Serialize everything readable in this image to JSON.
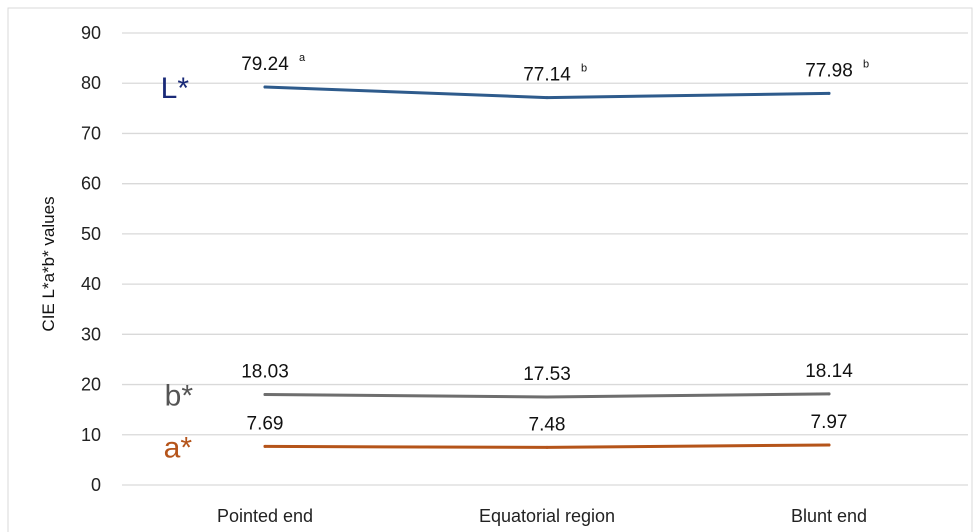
{
  "chart_data": {
    "type": "line",
    "ylabel": "CIE L*a*b* values",
    "xlabel": "",
    "ylim": [
      0,
      90
    ],
    "ytick_step": 10,
    "yticks": [
      "0",
      "10",
      "20",
      "30",
      "40",
      "50",
      "60",
      "70",
      "80",
      "90"
    ],
    "categories": [
      "Pointed end",
      "Equatorial region",
      "Blunt end"
    ],
    "grid": true,
    "series": [
      {
        "name": "L*",
        "color": "#2e5b8c",
        "label_color": "#1a2a78",
        "values": [
          79.24,
          77.14,
          77.98
        ],
        "labels": [
          "79.24",
          "77.14",
          "77.98"
        ],
        "superscripts": [
          "a",
          "b",
          "b"
        ]
      },
      {
        "name": "b*",
        "color": "#6e6e6e",
        "label_color": "#555555",
        "values": [
          18.03,
          17.53,
          18.14
        ],
        "labels": [
          "18.03",
          "17.53",
          "18.14"
        ],
        "superscripts": [
          "",
          "",
          ""
        ]
      },
      {
        "name": "a*",
        "color": "#b5541a",
        "label_color": "#b5541a",
        "values": [
          7.69,
          7.48,
          7.97
        ],
        "labels": [
          "7.69",
          "7.48",
          "7.97"
        ],
        "superscripts": [
          "",
          "",
          ""
        ]
      }
    ]
  }
}
